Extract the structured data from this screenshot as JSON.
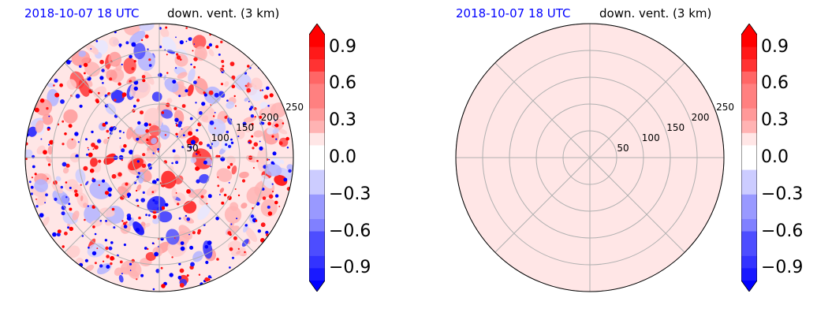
{
  "panels": [
    {
      "time_label": "2018-10-07 18 UTC",
      "var_label": "down. vent. (3 km)",
      "rings": [
        "50",
        "100",
        "150",
        "200",
        "250"
      ],
      "field": "variable"
    },
    {
      "time_label": "2018-10-07 18 UTC",
      "var_label": "down. vent. (3 km)",
      "rings": [
        "50",
        "100",
        "150",
        "200",
        "250"
      ],
      "field": "uniform"
    }
  ],
  "colorbar": {
    "ticks": [
      "0.9",
      "0.6",
      "0.3",
      "0.0",
      "−0.3",
      "−0.6",
      "−0.9"
    ],
    "min": -1.0,
    "max": 1.0,
    "extend": "both",
    "colormap": "bwr"
  },
  "chart_data": [
    {
      "type": "heatmap",
      "projection": "polar",
      "title": "2018-10-07 18 UTC down. vent. (3 km)",
      "radial_ticks": [
        50,
        100,
        150,
        200,
        250
      ],
      "radial_max": 250,
      "angular_grid_deg": [
        0,
        45,
        90,
        135,
        180,
        225,
        270,
        315
      ],
      "colorbar_ticks": [
        -0.9,
        -0.6,
        -0.3,
        0.0,
        0.3,
        0.6,
        0.9
      ],
      "vmin": -1.0,
      "vmax": 1.0,
      "field_description": "mixed red/blue speckled field"
    },
    {
      "type": "heatmap",
      "projection": "polar",
      "title": "2018-10-07 18 UTC down. vent. (3 km)",
      "radial_ticks": [
        50,
        100,
        150,
        200,
        250
      ],
      "radial_max": 250,
      "angular_grid_deg": [
        0,
        45,
        90,
        135,
        180,
        225,
        270,
        315
      ],
      "colorbar_ticks": [
        -0.9,
        -0.6,
        -0.3,
        0.0,
        0.3,
        0.6,
        0.9
      ],
      "vmin": -1.0,
      "vmax": 1.0,
      "field_value": 0.05
    }
  ]
}
